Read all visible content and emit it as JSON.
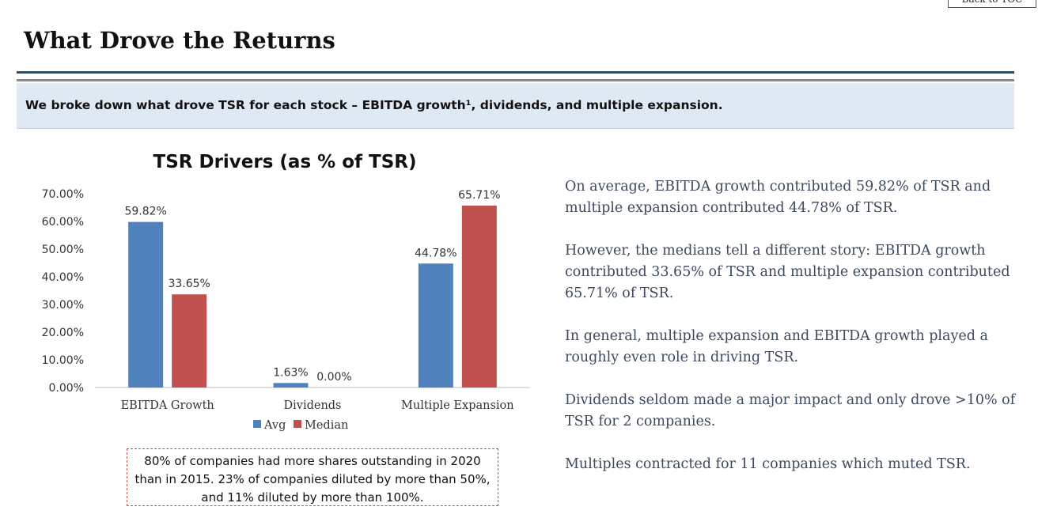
{
  "nav": {
    "back_label": "Back to TOC"
  },
  "page_title": "What Drove the Returns",
  "banner_text": "We broke down what drove TSR for each stock – EBITDA growth¹, dividends, and multiple expansion.",
  "chart_data": {
    "type": "bar",
    "title": "TSR Drivers (as % of TSR)",
    "categories": [
      "EBITDA Growth",
      "Dividends",
      "Multiple Expansion"
    ],
    "series": [
      {
        "name": "Avg",
        "values": [
          59.82,
          1.63,
          44.78
        ],
        "labels": [
          "59.82%",
          "1.63%",
          "44.78%"
        ],
        "color": "#4f81bd"
      },
      {
        "name": "Median",
        "values": [
          33.65,
          0.0,
          65.71
        ],
        "labels": [
          "33.65%",
          "0.00%",
          "65.71%"
        ],
        "color": "#c0504d"
      }
    ],
    "ylim": [
      0,
      70
    ],
    "yticks": [
      0,
      10,
      20,
      30,
      40,
      50,
      60,
      70
    ],
    "ytick_labels": [
      "0.00%",
      "10.00%",
      "20.00%",
      "30.00%",
      "40.00%",
      "50.00%",
      "60.00%",
      "70.00%"
    ],
    "xlabel": "",
    "ylabel": "",
    "grid": false,
    "legend_position": "bottom"
  },
  "chart_note": "80% of companies had more shares outstanding in 2020 than in 2015.  23% of companies diluted by more than 50%, and 11% diluted by more than 100%.",
  "commentary": [
    "On average, EBITDA growth contributed 59.82% of TSR and multiple expansion contributed 44.78% of TSR.",
    "However, the medians tell a different story: EBITDA growth contributed 33.65% of TSR and multiple expansion contributed 65.71% of TSR.",
    "In general, multiple expansion and EBITDA growth played a roughly even role in driving TSR.",
    "Dividends seldom made a major impact and only drove >10% of TSR for 2 companies.",
    "Multiples contracted for 11 companies which muted TSR."
  ]
}
